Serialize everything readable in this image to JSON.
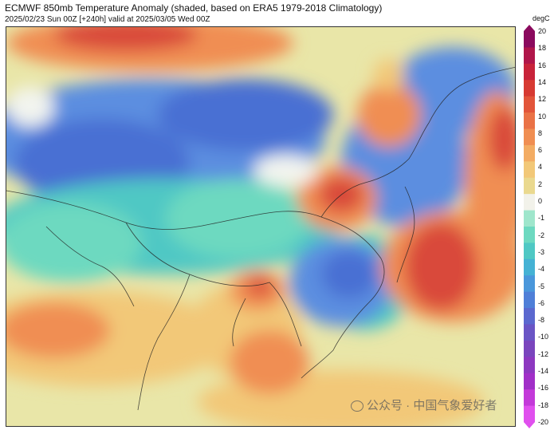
{
  "header": {
    "title": "ECMWF 850mb Temperature Anomaly (shaded, based on ERA5 1979-2018 Climatology)",
    "subtitle": "2025/02/23 Sun 00Z [+240h] valid at 2025/03/05 Wed 00Z"
  },
  "colorbar": {
    "unit": "degC",
    "ticks": [
      "20",
      "18",
      "16",
      "14",
      "12",
      "10",
      "8",
      "6",
      "4",
      "2",
      "0",
      "-1",
      "-2",
      "-3",
      "-4",
      "-5",
      "-6",
      "-8",
      "-10",
      "-12",
      "-14",
      "-16",
      "-18",
      "-20"
    ],
    "colors": [
      "#8b0a5e",
      "#b0164a",
      "#c8233a",
      "#d73a32",
      "#e2553a",
      "#ea7246",
      "#f08e52",
      "#f3ac63",
      "#f2c878",
      "#ead98f",
      "#f2f2ea",
      "#9fe6cc",
      "#6dd9c0",
      "#4fc8c4",
      "#45b2d4",
      "#4a97db",
      "#4f7fd8",
      "#5b68cf",
      "#6a55c5",
      "#7a45bd",
      "#8d38c0",
      "#a12fc8",
      "#c33ad9",
      "#e050ee"
    ]
  },
  "map": {
    "legend_note": "shaded anomaly field, East Asia",
    "palette": {
      "deep_blue": "#4a6fd3",
      "blue": "#5c8ee0",
      "cyan": "#4fc8c4",
      "teal": "#6dd9c0",
      "white": "#f2f4ef",
      "pale_yellow": "#e6e6a6",
      "yellow": "#f2c878",
      "orange": "#f08e52",
      "red": "#d94a3a",
      "pink": "#c9356e",
      "border": "#222222"
    }
  },
  "watermark": {
    "text": "公众号 · 中国气象爱好者"
  }
}
